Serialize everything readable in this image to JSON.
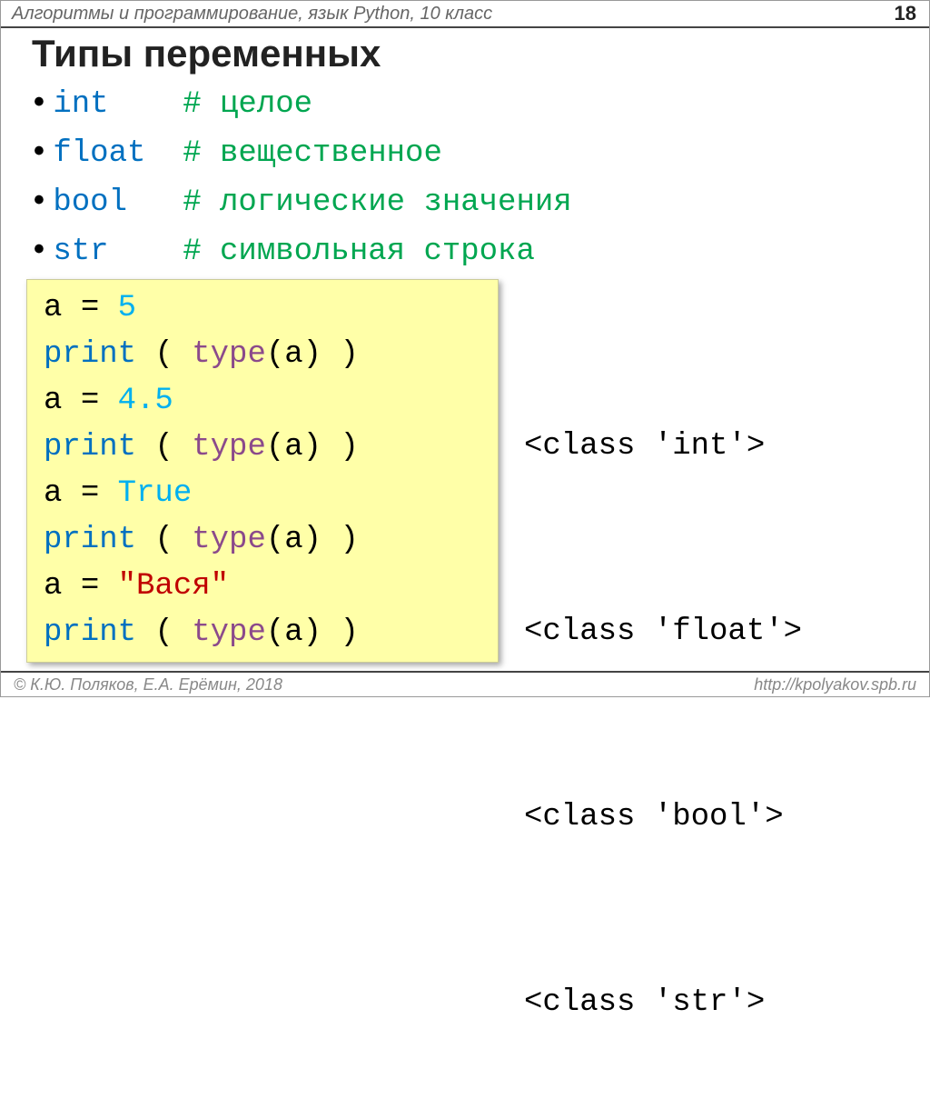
{
  "header": {
    "course": "Алгоритмы и программирование, язык Python, 10 класс",
    "page": "18"
  },
  "title": "Типы переменных",
  "types": [
    {
      "name": "int",
      "pad": "    ",
      "comment": "# целое"
    },
    {
      "name": "float",
      "pad": "  ",
      "comment": "# вещественное"
    },
    {
      "name": "bool",
      "pad": "   ",
      "comment": "# логические значения"
    },
    {
      "name": "str",
      "pad": "    ",
      "comment": "# символьная строка"
    }
  ],
  "code": {
    "lines": [
      {
        "assign_var": "a",
        "op": "=",
        "val": "5",
        "val_class": "c-num"
      },
      {
        "print_open": "print",
        "paren_l": " ( ",
        "fn": "type",
        "arg": "(a)",
        "paren_r": " )"
      },
      {
        "assign_var": "a",
        "op": "=",
        "val": "4.5",
        "val_class": "c-num"
      },
      {
        "print_open": "print",
        "paren_l": " ( ",
        "fn": "type",
        "arg": "(a)",
        "paren_r": " )"
      },
      {
        "assign_var": "a",
        "op": "=",
        "val": "True",
        "val_class": "c-num"
      },
      {
        "print_open": "print",
        "paren_l": " ( ",
        "fn": "type",
        "arg": "(a)",
        "paren_r": " )"
      },
      {
        "assign_var": "a",
        "op": "=",
        "val": "\"Вася\"",
        "val_class": "c-str"
      },
      {
        "print_open": "print",
        "paren_l": " ( ",
        "fn": "type",
        "arg": "(a)",
        "paren_r": " )"
      }
    ]
  },
  "output": [
    "",
    "<class 'int'>",
    "",
    "<class 'float'>",
    "",
    "<class 'bool'>",
    "",
    "<class 'str'>"
  ],
  "footer": {
    "left": "© К.Ю. Поляков, Е.А. Ерёмин, 2018",
    "right": "http://kpolyakov.spb.ru"
  },
  "colors": {
    "keyword": "#0070c0",
    "comment": "#00a650",
    "print": "#0070c0",
    "type_fn": "#8b4a8b",
    "number": "#00b0f0",
    "string": "#c00000",
    "code_bg": "#ffffa8",
    "border": "#444444",
    "muted": "#888888"
  }
}
